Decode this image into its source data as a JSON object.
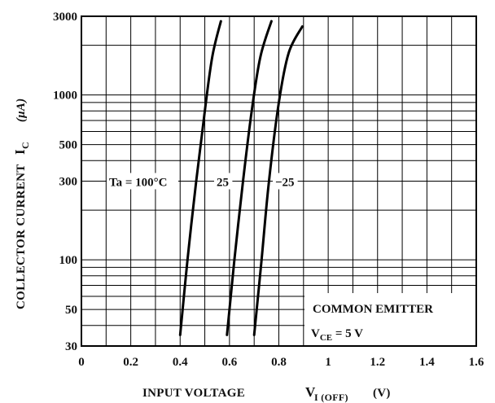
{
  "chart_data": {
    "type": "line",
    "xlabel": {
      "text": "INPUT VOLTAGE",
      "symbol": "V",
      "subscript": "I (OFF)",
      "unit": "(V)"
    },
    "ylabel": {
      "text": "COLLECTOR CURRENT",
      "symbol": "I",
      "subscript": "C",
      "unit": "(μA)"
    },
    "xlim": [
      0,
      1.6
    ],
    "ylim": [
      30,
      3000
    ],
    "y_scale": "log",
    "grid": true,
    "x_ticks": [
      "0",
      "0.2",
      "0.4",
      "0.6",
      "0.8",
      "1",
      "1.2",
      "1.4",
      "1.6"
    ],
    "y_ticks": [
      "30",
      "50",
      "100",
      "300",
      "500",
      "1000",
      "3000"
    ],
    "series": [
      {
        "name": "Ta = 100°C",
        "label_position": "left-of-curve",
        "points": [
          [
            0.4,
            35
          ],
          [
            0.43,
            100
          ],
          [
            0.465,
            300
          ],
          [
            0.5,
            800
          ],
          [
            0.53,
            1700
          ],
          [
            0.565,
            2800
          ]
        ]
      },
      {
        "name": "25",
        "label_position": "left-of-curve",
        "points": [
          [
            0.59,
            35
          ],
          [
            0.62,
            100
          ],
          [
            0.655,
            300
          ],
          [
            0.69,
            800
          ],
          [
            0.725,
            1700
          ],
          [
            0.77,
            2800
          ]
        ]
      },
      {
        "name": "-25",
        "label_position": "right-of-curve",
        "points": [
          [
            0.7,
            35
          ],
          [
            0.73,
            100
          ],
          [
            0.76,
            300
          ],
          [
            0.8,
            900
          ],
          [
            0.84,
            1800
          ],
          [
            0.895,
            2600
          ]
        ]
      }
    ],
    "annotations": [
      "COMMON EMITTER",
      "V_CE = 5 V"
    ]
  }
}
